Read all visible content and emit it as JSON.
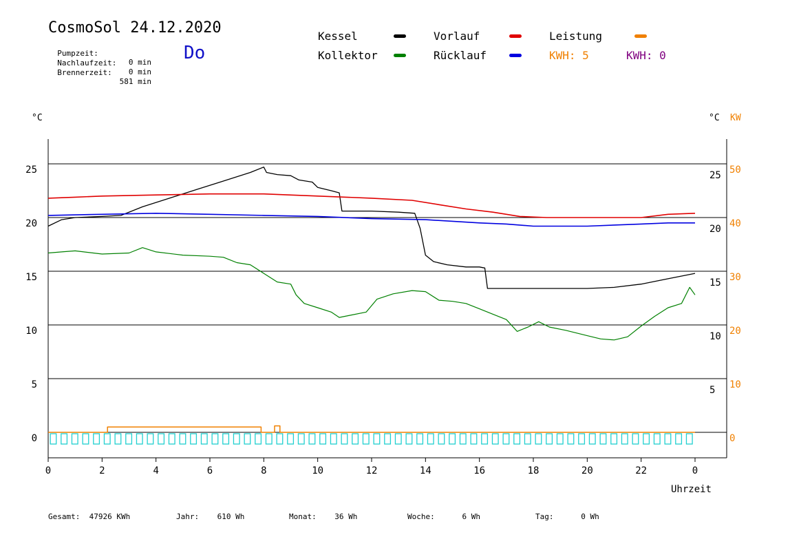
{
  "header": {
    "title": "CosmoSol 24.12.2020",
    "day": "Do",
    "stats": [
      {
        "label": "Pumpzeit:",
        "value": "0 min"
      },
      {
        "label": "Nachlaufzeit:",
        "value": "0 min"
      },
      {
        "label": "Brennerzeit:",
        "value": "581 min"
      }
    ]
  },
  "legend": {
    "kessel": "Kessel",
    "kollektor": "Kollektor",
    "vorlauf": "Vorlauf",
    "ruecklauf": "Rücklauf",
    "leistung": "Leistung",
    "kwh1": "KWH: 5",
    "kwh2": "KWH: 0"
  },
  "colors": {
    "kessel": "#000000",
    "kollektor": "#008000",
    "vorlauf": "#e00000",
    "ruecklauf": "#0000e0",
    "leistung": "#f08000",
    "kwh2": "#800080",
    "pump": "#20d0d0"
  },
  "footer": {
    "gesamt_label": "Gesamt:",
    "gesamt_value": "47926 KWh",
    "jahr_label": "Jahr:",
    "jahr_value": "610 Wh",
    "monat_label": "Monat:",
    "monat_value": "36 Wh",
    "woche_label": "Woche:",
    "woche_value": "6 Wh",
    "tag_label": "Tag:",
    "tag_value": "0 Wh"
  },
  "chart_data": {
    "type": "line",
    "xlabel": "Uhrzeit",
    "ylabel_left": "°C",
    "ylabel_right_unit": "°C",
    "ylabel_right_power": "KW",
    "xlim": [
      0,
      24
    ],
    "x_ticks": [
      "0",
      "2",
      "4",
      "6",
      "8",
      "10",
      "12",
      "14",
      "16",
      "18",
      "20",
      "22",
      "0"
    ],
    "y_left_ticks": [
      "0",
      "5",
      "10",
      "15",
      "20",
      "25"
    ],
    "y_right_temp_ticks": [
      "5",
      "10",
      "15",
      "20",
      "25"
    ],
    "y_right_kw_ticks": [
      "0",
      "10",
      "20",
      "30",
      "40",
      "50"
    ],
    "ylim": [
      -2,
      29
    ],
    "grid": true,
    "series": [
      {
        "name": "Kessel",
        "key": "kessel",
        "points": [
          [
            0,
            19.2
          ],
          [
            0.5,
            19.8
          ],
          [
            1,
            20.0
          ],
          [
            2,
            20.1
          ],
          [
            2.7,
            20.2
          ],
          [
            3.5,
            21.0
          ],
          [
            4.5,
            21.8
          ],
          [
            5.5,
            22.6
          ],
          [
            6.5,
            23.4
          ],
          [
            7.5,
            24.2
          ],
          [
            8.0,
            24.7
          ],
          [
            8.1,
            24.2
          ],
          [
            8.5,
            24.0
          ],
          [
            9.0,
            23.9
          ],
          [
            9.3,
            23.5
          ],
          [
            9.8,
            23.3
          ],
          [
            10.0,
            22.8
          ],
          [
            10.5,
            22.5
          ],
          [
            10.8,
            22.3
          ],
          [
            10.9,
            20.6
          ],
          [
            12.0,
            20.6
          ],
          [
            13.0,
            20.5
          ],
          [
            13.6,
            20.4
          ],
          [
            13.8,
            19.0
          ],
          [
            14.0,
            16.5
          ],
          [
            14.3,
            15.9
          ],
          [
            14.8,
            15.6
          ],
          [
            15.5,
            15.4
          ],
          [
            16.0,
            15.4
          ],
          [
            16.2,
            15.3
          ],
          [
            16.3,
            13.4
          ],
          [
            17.0,
            13.4
          ],
          [
            18.0,
            13.4
          ],
          [
            19.0,
            13.4
          ],
          [
            20.0,
            13.4
          ],
          [
            21.0,
            13.5
          ],
          [
            22.0,
            13.8
          ],
          [
            23.0,
            14.3
          ],
          [
            23.6,
            14.6
          ],
          [
            24.0,
            14.8
          ]
        ]
      },
      {
        "name": "Vorlauf",
        "key": "vorlauf",
        "points": [
          [
            0,
            21.8
          ],
          [
            1,
            21.9
          ],
          [
            2,
            22.0
          ],
          [
            4,
            22.1
          ],
          [
            6,
            22.2
          ],
          [
            8,
            22.2
          ],
          [
            10,
            22.0
          ],
          [
            12,
            21.8
          ],
          [
            13.5,
            21.6
          ],
          [
            14.5,
            21.2
          ],
          [
            15.5,
            20.8
          ],
          [
            16.5,
            20.5
          ],
          [
            17.5,
            20.1
          ],
          [
            18.5,
            20.0
          ],
          [
            20,
            20.0
          ],
          [
            21,
            20.0
          ],
          [
            22,
            20.0
          ],
          [
            23,
            20.3
          ],
          [
            24,
            20.4
          ]
        ]
      },
      {
        "name": "Rücklauf",
        "key": "ruecklauf",
        "points": [
          [
            0,
            20.2
          ],
          [
            2,
            20.3
          ],
          [
            4,
            20.4
          ],
          [
            6,
            20.3
          ],
          [
            8,
            20.2
          ],
          [
            10,
            20.1
          ],
          [
            12,
            19.9
          ],
          [
            14,
            19.8
          ],
          [
            16,
            19.5
          ],
          [
            17,
            19.4
          ],
          [
            18,
            19.2
          ],
          [
            20,
            19.2
          ],
          [
            22,
            19.4
          ],
          [
            23,
            19.5
          ],
          [
            24,
            19.5
          ]
        ]
      },
      {
        "name": "Kollektor",
        "key": "kollektor",
        "points": [
          [
            0,
            16.7
          ],
          [
            0.5,
            16.8
          ],
          [
            1,
            16.9
          ],
          [
            2,
            16.6
          ],
          [
            3,
            16.7
          ],
          [
            3.5,
            17.2
          ],
          [
            4,
            16.8
          ],
          [
            5,
            16.5
          ],
          [
            6,
            16.4
          ],
          [
            6.5,
            16.3
          ],
          [
            7,
            15.8
          ],
          [
            7.5,
            15.6
          ],
          [
            8,
            14.8
          ],
          [
            8.5,
            14.0
          ],
          [
            9,
            13.8
          ],
          [
            9.2,
            12.8
          ],
          [
            9.5,
            12.0
          ],
          [
            10,
            11.6
          ],
          [
            10.5,
            11.2
          ],
          [
            10.8,
            10.7
          ],
          [
            11.2,
            10.9
          ],
          [
            11.8,
            11.2
          ],
          [
            12.2,
            12.4
          ],
          [
            12.8,
            12.9
          ],
          [
            13.5,
            13.2
          ],
          [
            14.0,
            13.1
          ],
          [
            14.5,
            12.3
          ],
          [
            15.0,
            12.2
          ],
          [
            15.5,
            12.0
          ],
          [
            16.0,
            11.5
          ],
          [
            16.5,
            11.0
          ],
          [
            17.0,
            10.5
          ],
          [
            17.4,
            9.4
          ],
          [
            17.8,
            9.8
          ],
          [
            18.2,
            10.3
          ],
          [
            18.6,
            9.8
          ],
          [
            19.2,
            9.5
          ],
          [
            20.0,
            9.0
          ],
          [
            20.5,
            8.7
          ],
          [
            21.0,
            8.6
          ],
          [
            21.5,
            8.9
          ],
          [
            22.0,
            9.9
          ],
          [
            22.5,
            10.8
          ],
          [
            23.0,
            11.6
          ],
          [
            23.5,
            12.0
          ],
          [
            23.8,
            13.5
          ],
          [
            24.0,
            12.8
          ]
        ]
      },
      {
        "name": "Leistung",
        "key": "leistung",
        "points": [
          [
            0,
            0
          ],
          [
            2.2,
            0
          ],
          [
            2.2,
            0.5
          ],
          [
            7.9,
            0.5
          ],
          [
            7.9,
            0
          ],
          [
            8.4,
            0
          ],
          [
            8.4,
            0.6
          ],
          [
            8.6,
            0.6
          ],
          [
            8.6,
            0
          ],
          [
            24,
            0
          ]
        ]
      }
    ]
  }
}
